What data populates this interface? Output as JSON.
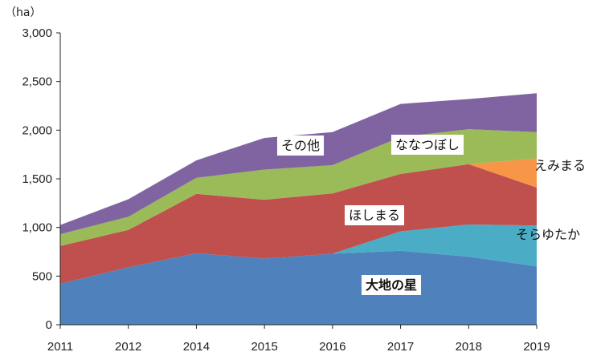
{
  "chart_data": {
    "type": "area",
    "stacked": true,
    "unit_label": "（ha）",
    "x": [
      "2011",
      "2012",
      "2014",
      "2015",
      "2016",
      "2017",
      "2018",
      "2019"
    ],
    "ylim": [
      0,
      3000
    ],
    "yticks": [
      "0",
      "500",
      "1,000",
      "1,500",
      "2,000",
      "2,500",
      "3,000"
    ],
    "ytick_values": [
      0,
      500,
      1000,
      1500,
      2000,
      2500,
      3000
    ],
    "grid": false,
    "series": [
      {
        "name": "大地の星",
        "color": "#4F81BD",
        "values": [
          420,
          590,
          735,
          680,
          730,
          760,
          700,
          600
        ]
      },
      {
        "name": "そらゆたか",
        "color": "#4BACC6",
        "values": [
          0,
          0,
          0,
          0,
          0,
          200,
          330,
          420
        ]
      },
      {
        "name": "ほしまる",
        "color": "#C0504D",
        "values": [
          390,
          385,
          610,
          605,
          620,
          590,
          620,
          390
        ]
      },
      {
        "name": "えみまる",
        "color": "#F79646",
        "values": [
          0,
          0,
          0,
          0,
          0,
          0,
          0,
          300
        ]
      },
      {
        "name": "ななつぼし",
        "color": "#9BBB59",
        "values": [
          120,
          135,
          165,
          310,
          290,
          380,
          360,
          270
        ]
      },
      {
        "name": "その他",
        "color": "#8064A2",
        "values": [
          95,
          180,
          180,
          325,
          340,
          340,
          310,
          400
        ]
      }
    ]
  }
}
